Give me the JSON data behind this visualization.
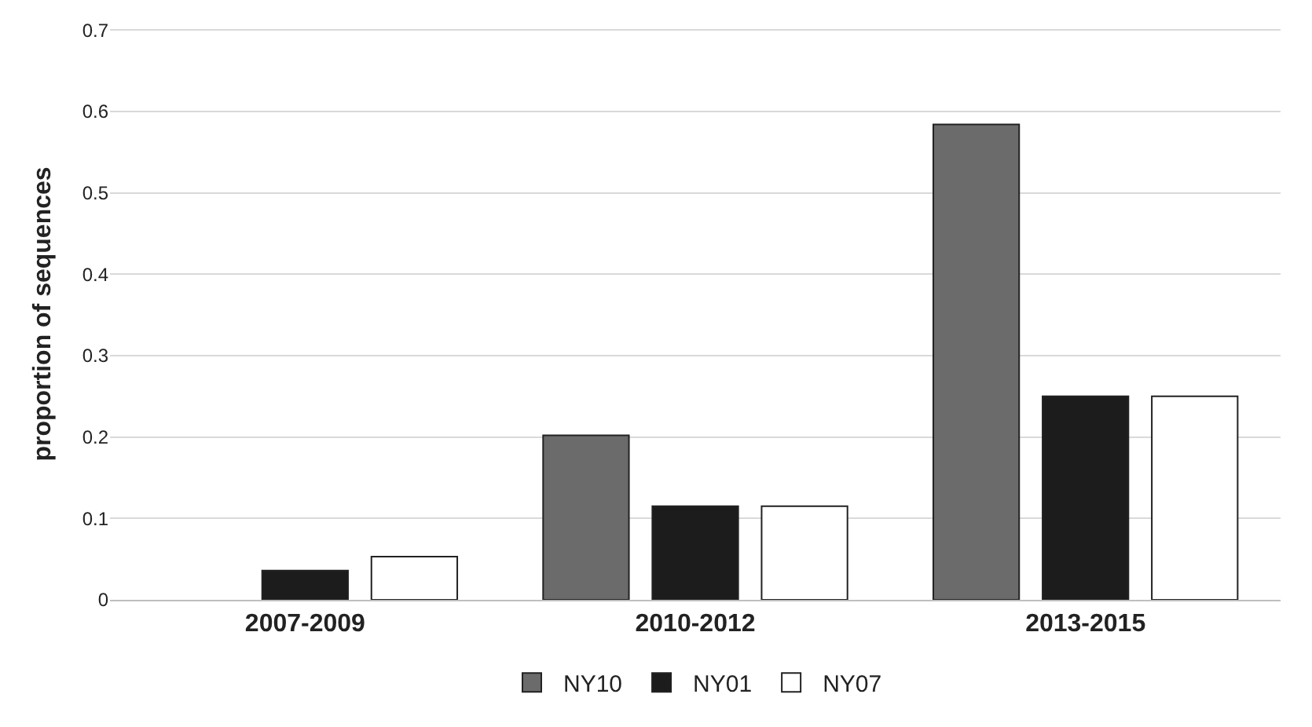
{
  "chart_data": {
    "type": "bar",
    "ylabel": "proportion of sequences",
    "categories": [
      "2007-2009",
      "2010-2012",
      "2013-2015"
    ],
    "series": [
      {
        "name": "NY10",
        "color": "#6b6b6b",
        "values": [
          null,
          0.202,
          0.584
        ]
      },
      {
        "name": "NY01",
        "color": "#1c1c1c",
        "values": [
          0.036,
          0.115,
          0.25
        ]
      },
      {
        "name": "NY07",
        "color": "#ffffff",
        "values": [
          0.053,
          0.115,
          0.25
        ]
      }
    ],
    "ylim": [
      0,
      0.7
    ],
    "yticks": [
      {
        "value": 0,
        "label": "0"
      },
      0.1,
      0.2,
      0.3,
      0.4,
      0.5,
      0.6,
      0.7
    ],
    "grid": "y",
    "legend": "bottom"
  }
}
